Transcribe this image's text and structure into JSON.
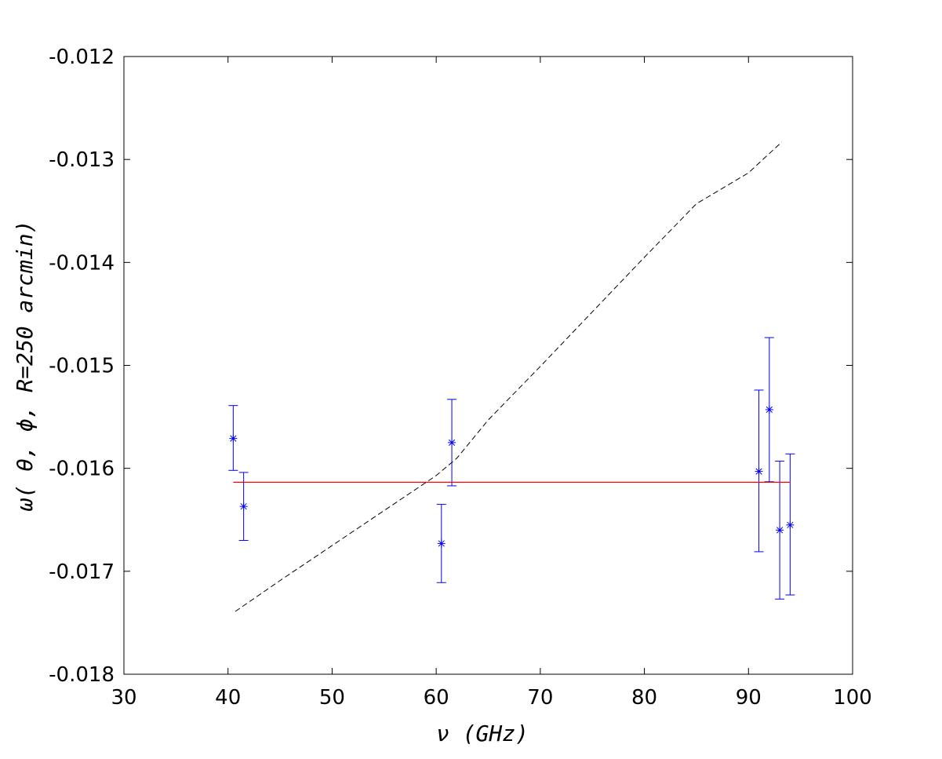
{
  "chart_data": {
    "type": "scatter",
    "xlabel": "ν  (GHz)",
    "ylabel": "ω( θ,  ϕ,  R=250 arcmin)",
    "xlim": [
      30,
      100
    ],
    "ylim": [
      -0.018,
      -0.012
    ],
    "xticks": [
      30,
      40,
      50,
      60,
      70,
      80,
      90,
      100
    ],
    "xtick_labels": [
      "30",
      "40",
      "50",
      "60",
      "70",
      "80",
      "90",
      "100"
    ],
    "yticks": [
      -0.018,
      -0.017,
      -0.016,
      -0.015,
      -0.014,
      -0.013,
      -0.012
    ],
    "ytick_labels": [
      "-0.018",
      "-0.017",
      "-0.016",
      "-0.015",
      "-0.014",
      "-0.013",
      "-0.012"
    ],
    "grid": false,
    "colors": {
      "points": "#0000ff",
      "fit": "#ff0000",
      "model": "#000000"
    },
    "series": [
      {
        "kind": "errorbar",
        "marker": "asterisk",
        "points": [
          {
            "x": 40.5,
            "y": -0.01571,
            "ylow": -0.01602,
            "yhigh": -0.01539
          },
          {
            "x": 41.5,
            "y": -0.01637,
            "ylow": -0.0167,
            "yhigh": -0.01604
          },
          {
            "x": 60.5,
            "y": -0.01673,
            "ylow": -0.01711,
            "yhigh": -0.01635
          },
          {
            "x": 61.5,
            "y": -0.01575,
            "ylow": -0.01617,
            "yhigh": -0.01533
          },
          {
            "x": 91.0,
            "y": -0.01603,
            "ylow": -0.01681,
            "yhigh": -0.01524
          },
          {
            "x": 92.0,
            "y": -0.01543,
            "ylow": -0.01613,
            "yhigh": -0.01473
          },
          {
            "x": 93.0,
            "y": -0.0166,
            "ylow": -0.01727,
            "yhigh": -0.01593
          },
          {
            "x": 94.0,
            "y": -0.01655,
            "ylow": -0.01723,
            "yhigh": -0.01586
          }
        ]
      },
      {
        "kind": "hline",
        "y": -0.016135,
        "x": [
          40.5,
          94.0
        ]
      },
      {
        "kind": "dashed-line",
        "x": [
          40.7,
          45,
          50,
          55,
          60,
          62,
          65,
          70,
          75,
          80,
          85,
          90,
          93.2
        ],
        "y": [
          -0.01739,
          -0.01709,
          -0.01675,
          -0.01641,
          -0.01607,
          -0.0159,
          -0.01553,
          -0.01501,
          -0.01448,
          -0.01395,
          -0.01343,
          -0.01313,
          -0.01283
        ]
      }
    ]
  }
}
